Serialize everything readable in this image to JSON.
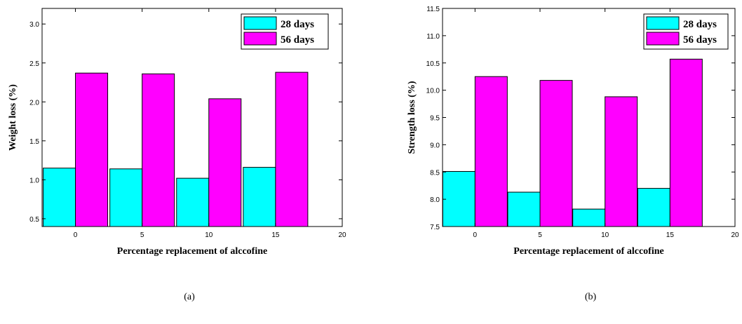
{
  "chart_data": [
    {
      "type": "bar",
      "panel_label": "(a)",
      "categories": [
        "0",
        "5",
        "10",
        "15"
      ],
      "x_ticks": [
        "0",
        "5",
        "10",
        "15",
        "20"
      ],
      "series": [
        {
          "name": "28 days",
          "values": [
            1.15,
            1.14,
            1.02,
            1.16
          ],
          "color": "#00FFFF"
        },
        {
          "name": "56 days",
          "values": [
            2.37,
            2.36,
            2.04,
            2.38
          ],
          "color": "#FF00FF"
        }
      ],
      "xlabel": "Percentage replacement of alccofine",
      "ylabel": "Weight loss (%)",
      "ylim": [
        0.4,
        3.2
      ],
      "y_ticks": [
        "0.5",
        "1.0",
        "1.5",
        "2.0",
        "2.5",
        "3.0"
      ],
      "legend": "top-right",
      "grid": false
    },
    {
      "type": "bar",
      "panel_label": "(b)",
      "categories": [
        "0",
        "5",
        "10",
        "15"
      ],
      "x_ticks": [
        "0",
        "5",
        "10",
        "15",
        "20"
      ],
      "series": [
        {
          "name": "28 days",
          "values": [
            8.51,
            8.13,
            7.82,
            8.2
          ],
          "color": "#00FFFF"
        },
        {
          "name": "56 days",
          "values": [
            10.25,
            10.18,
            9.88,
            10.57
          ],
          "color": "#FF00FF"
        }
      ],
      "xlabel": "Percentage replacement of alccofine",
      "ylabel": "Strength loss (%)",
      "ylim": [
        7.5,
        11.5
      ],
      "y_ticks": [
        "7.5",
        "8.0",
        "8.5",
        "9.0",
        "9.5",
        "10.0",
        "10.5",
        "11.0",
        "11.5"
      ],
      "legend": "top-right",
      "grid": false
    }
  ]
}
